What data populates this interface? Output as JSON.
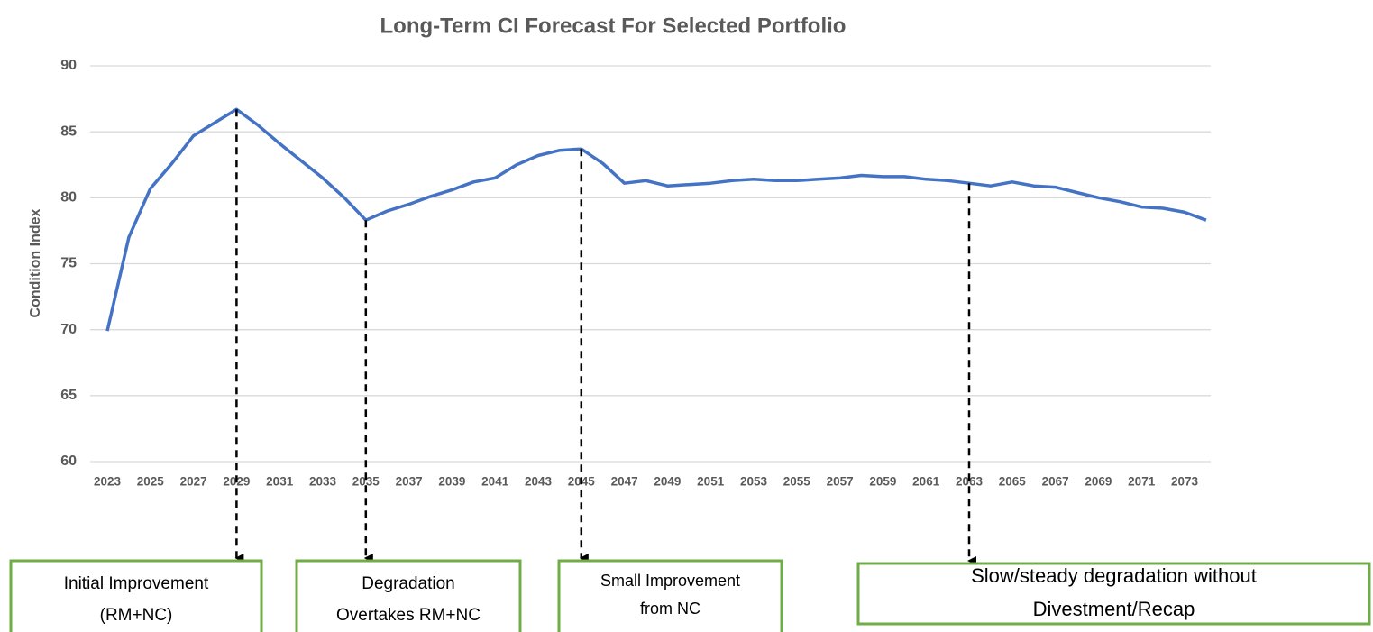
{
  "chart_data": {
    "type": "line",
    "title": "Long-Term CI Forecast For Selected Portfolio",
    "y_label": "Condition Index",
    "categories": [
      "2023",
      null,
      "2025",
      null,
      "2027",
      null,
      "2029",
      null,
      "2031",
      null,
      "2033",
      null,
      "2035",
      null,
      "2037",
      null,
      "2039",
      null,
      "2041",
      null,
      "2043",
      null,
      "2045",
      null,
      "2047",
      null,
      "2049",
      null,
      "2051",
      null,
      "2053",
      null,
      "2055",
      null,
      "2057",
      null,
      "2059",
      null,
      "2061",
      null,
      "2063",
      null,
      "2065",
      null,
      "2067",
      null,
      "2069",
      null,
      "2071",
      null,
      "2073",
      null
    ],
    "series": [
      {
        "name": "Condition Index",
        "color": "#4472c4",
        "values": [
          69.9,
          77.0,
          80.7,
          82.6,
          84.7,
          85.7,
          86.7,
          85.5,
          84.1,
          82.8,
          81.5,
          80.0,
          78.3,
          79.0,
          79.5,
          80.1,
          80.6,
          81.2,
          81.5,
          82.5,
          83.2,
          83.6,
          83.7,
          82.6,
          81.1,
          81.3,
          80.9,
          81.0,
          81.1,
          81.3,
          81.4,
          81.3,
          81.3,
          81.4,
          81.5,
          81.7,
          81.6,
          81.6,
          81.4,
          81.3,
          81.1,
          80.9,
          81.2,
          80.9,
          80.8,
          80.4,
          80.0,
          79.7,
          79.3,
          79.2,
          78.9,
          78.3
        ]
      }
    ],
    "ylim": [
      60,
      90
    ],
    "yticks": [
      60,
      65,
      70,
      75,
      80,
      85,
      90
    ],
    "grid": true,
    "annotations": [
      {
        "category": "2029",
        "lines": [
          "Initial Improvement",
          "(RM+NC)"
        ]
      },
      {
        "category": "2035",
        "lines": [
          "Degradation",
          "Overtakes RM+NC"
        ]
      },
      {
        "category": "2045",
        "lines": [
          "Small Improvement",
          "from NC"
        ]
      },
      {
        "category": "2063",
        "lines": [
          "Slow/steady degradation without",
          "Divestment/Recap"
        ]
      }
    ]
  }
}
